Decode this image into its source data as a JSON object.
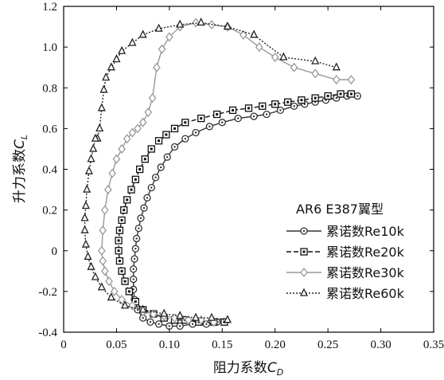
{
  "chart_data": {
    "type": "line",
    "xlabel": "阻力系数C_D",
    "xlabel_main": "阻力系数",
    "xlabel_var": "C",
    "xlabel_sub": "D",
    "ylabel": "升力系数C_L",
    "ylabel_main": "升力系数",
    "ylabel_var": "C",
    "ylabel_sub": "L",
    "xlim": [
      0,
      0.35
    ],
    "ylim": [
      -0.4,
      1.2
    ],
    "xticks": [
      0,
      0.05,
      0.1,
      0.15,
      0.2,
      0.25,
      0.3,
      0.35
    ],
    "xtick_labels": [
      "0",
      "0.05",
      "0.10",
      "0.15",
      "0.20",
      "0.25",
      "0.30",
      "0.35"
    ],
    "yticks": [
      -0.4,
      -0.2,
      0,
      0.2,
      0.4,
      0.6,
      0.8,
      1.0,
      1.2
    ],
    "ytick_labels": [
      "-0.4",
      "-0.2",
      "0",
      "0.2",
      "0.4",
      "0.6",
      "0.8",
      "1.0",
      "1.2"
    ],
    "legend_title": "AR6 E387翼型",
    "legend_position": "lower-right",
    "grid": false,
    "series": [
      {
        "name": "累诺数Re10k",
        "marker": "circle",
        "color": "#333333",
        "line_style": "solid",
        "x": [
          0.278,
          0.268,
          0.258,
          0.248,
          0.238,
          0.228,
          0.218,
          0.205,
          0.192,
          0.18,
          0.165,
          0.15,
          0.138,
          0.125,
          0.115,
          0.105,
          0.098,
          0.092,
          0.087,
          0.083,
          0.079,
          0.076,
          0.073,
          0.071,
          0.069,
          0.068,
          0.067,
          0.066,
          0.066,
          0.066,
          0.067,
          0.07,
          0.075,
          0.082,
          0.09,
          0.1,
          0.11,
          0.122,
          0.135,
          0.145
        ],
        "y": [
          0.76,
          0.76,
          0.75,
          0.74,
          0.73,
          0.72,
          0.71,
          0.69,
          0.67,
          0.66,
          0.65,
          0.63,
          0.61,
          0.58,
          0.55,
          0.51,
          0.46,
          0.41,
          0.36,
          0.31,
          0.26,
          0.21,
          0.16,
          0.11,
          0.06,
          0.01,
          -0.04,
          -0.09,
          -0.14,
          -0.19,
          -0.24,
          -0.29,
          -0.33,
          -0.35,
          -0.36,
          -0.37,
          -0.37,
          -0.36,
          -0.36,
          -0.35
        ]
      },
      {
        "name": "累诺数Re20k",
        "marker": "square",
        "color": "#111111",
        "line_style": "dashed",
        "x": [
          0.272,
          0.262,
          0.25,
          0.238,
          0.225,
          0.212,
          0.2,
          0.188,
          0.175,
          0.16,
          0.145,
          0.13,
          0.115,
          0.105,
          0.097,
          0.09,
          0.083,
          0.077,
          0.072,
          0.068,
          0.064,
          0.06,
          0.057,
          0.055,
          0.053,
          0.052,
          0.052,
          0.053,
          0.055,
          0.058,
          0.062,
          0.068,
          0.075,
          0.085,
          0.095,
          0.105,
          0.115,
          0.128,
          0.142,
          0.152
        ],
        "y": [
          0.77,
          0.77,
          0.76,
          0.75,
          0.74,
          0.73,
          0.72,
          0.71,
          0.7,
          0.69,
          0.67,
          0.65,
          0.63,
          0.6,
          0.57,
          0.54,
          0.5,
          0.45,
          0.4,
          0.35,
          0.3,
          0.25,
          0.2,
          0.15,
          0.1,
          0.05,
          0.0,
          -0.05,
          -0.1,
          -0.15,
          -0.2,
          -0.25,
          -0.29,
          -0.31,
          -0.33,
          -0.34,
          -0.34,
          -0.35,
          -0.35,
          -0.35
        ]
      },
      {
        "name": "累诺数Re30k",
        "marker": "diamond",
        "color": "#999999",
        "line_style": "solid",
        "x": [
          0.272,
          0.258,
          0.238,
          0.218,
          0.2,
          0.185,
          0.17,
          0.155,
          0.14,
          0.125,
          0.11,
          0.1,
          0.093,
          0.088,
          0.084,
          0.08,
          0.075,
          0.07,
          0.065,
          0.06,
          0.055,
          0.05,
          0.046,
          0.042,
          0.039,
          0.037,
          0.036,
          0.037,
          0.039,
          0.043,
          0.048,
          0.055,
          0.065,
          0.075,
          0.085,
          0.095,
          0.105,
          0.118,
          0.13,
          0.142
        ],
        "y": [
          0.84,
          0.84,
          0.87,
          0.9,
          0.95,
          1.0,
          1.06,
          1.1,
          1.11,
          1.12,
          1.1,
          1.05,
          0.99,
          0.9,
          0.75,
          0.68,
          0.63,
          0.6,
          0.58,
          0.55,
          0.5,
          0.45,
          0.38,
          0.3,
          0.2,
          0.1,
          0.0,
          -0.05,
          -0.1,
          -0.15,
          -0.2,
          -0.24,
          -0.27,
          -0.3,
          -0.31,
          -0.32,
          -0.33,
          -0.34,
          -0.34,
          -0.35
        ]
      },
      {
        "name": "累诺数Re60k",
        "marker": "triangle",
        "color": "#222222",
        "line_style": "dotted",
        "x": [
          0.258,
          0.238,
          0.208,
          0.18,
          0.155,
          0.13,
          0.11,
          0.09,
          0.075,
          0.065,
          0.055,
          0.05,
          0.045,
          0.04,
          0.038,
          0.036,
          0.034,
          0.032,
          0.03,
          0.028,
          0.026,
          0.024,
          0.022,
          0.021,
          0.02,
          0.02,
          0.021,
          0.023,
          0.026,
          0.03,
          0.036,
          0.045,
          0.058,
          0.075,
          0.095,
          0.11,
          0.125,
          0.14,
          0.155
        ],
        "y": [
          0.9,
          0.93,
          0.95,
          1.06,
          1.1,
          1.12,
          1.11,
          1.09,
          1.06,
          1.02,
          0.98,
          0.94,
          0.9,
          0.85,
          0.79,
          0.7,
          0.6,
          0.55,
          0.55,
          0.5,
          0.45,
          0.39,
          0.3,
          0.22,
          0.16,
          0.1,
          0.03,
          -0.03,
          -0.08,
          -0.13,
          -0.18,
          -0.23,
          -0.27,
          -0.29,
          -0.31,
          -0.32,
          -0.33,
          -0.33,
          -0.34
        ]
      }
    ]
  }
}
